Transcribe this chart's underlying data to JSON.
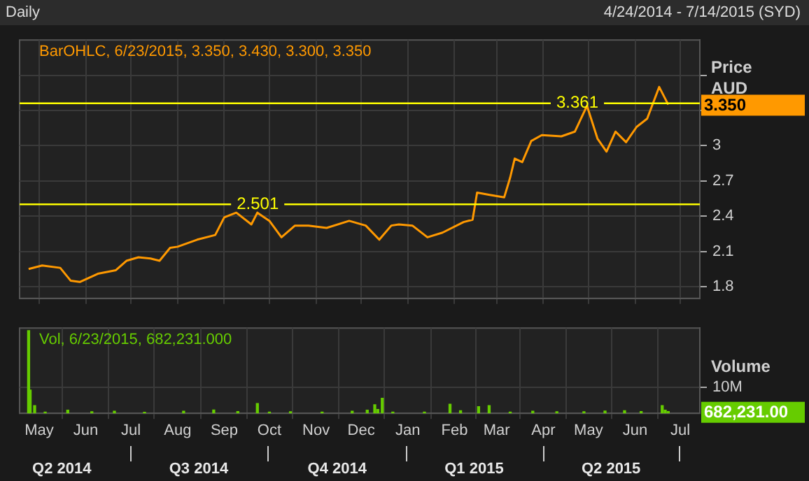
{
  "chart_data": [
    {
      "type": "line",
      "title": "Daily",
      "subtitle": "4/24/2014 - 7/14/2015 (SYD)",
      "ylabel": "Price AUD",
      "annotations": [
        "BarOHLC, 6/23/2015, 3.350, 3.430, 3.300, 3.350",
        "3.350"
      ],
      "series": [
        {
          "color": "#ff9900",
          "x": [
            "2014-04-24",
            "2014-05-03",
            "2014-05-15",
            "2014-05-22",
            "2014-05-28",
            "2014-06-09",
            "2014-06-21",
            "2014-06-28",
            "2014-07-06",
            "2014-07-14",
            "2014-07-20",
            "2014-07-27",
            "2014-08-01",
            "2014-08-14",
            "2014-08-26",
            "2014-09-01",
            "2014-09-09",
            "2014-09-19",
            "2014-09-23",
            "2014-10-01",
            "2014-10-09",
            "2014-10-18",
            "2014-10-27",
            "2014-11-08",
            "2014-11-23",
            "2014-12-04",
            "2014-12-13",
            "2014-12-21",
            "2014-12-26",
            "2015-01-04",
            "2015-01-14",
            "2015-01-24",
            "2015-02-07",
            "2015-02-13",
            "2015-02-16",
            "2015-02-25",
            "2015-03-06",
            "2015-03-10",
            "2015-03-13",
            "2015-03-18",
            "2015-03-24",
            "2015-03-31",
            "2015-04-13",
            "2015-04-22",
            "2015-04-30",
            "2015-05-07",
            "2015-05-13",
            "2015-05-19",
            "2015-05-26",
            "2015-06-02",
            "2015-06-09",
            "2015-06-17",
            "2015-06-23"
          ],
          "values": [
            1.95,
            1.98,
            1.96,
            1.85,
            1.84,
            1.91,
            1.94,
            2.02,
            2.05,
            2.04,
            2.02,
            2.13,
            2.14,
            2.2,
            2.24,
            2.39,
            2.43,
            2.33,
            2.43,
            2.36,
            2.22,
            2.32,
            2.32,
            2.3,
            2.36,
            2.32,
            2.2,
            2.32,
            2.33,
            2.32,
            2.22,
            2.26,
            2.35,
            2.37,
            2.6,
            2.58,
            2.56,
            2.73,
            2.89,
            2.86,
            3.04,
            3.09,
            3.08,
            3.12,
            3.34,
            3.06,
            2.95,
            3.12,
            3.03,
            3.16,
            3.23,
            3.5,
            3.35
          ]
        }
      ],
      "xlim": [
        "2014-04-18",
        "2015-07-14"
      ],
      "xticks": [
        {
          "value": "2014-05-01",
          "label": null
        },
        {
          "value": "2014-06-01",
          "label": null
        },
        {
          "value": "2014-07-01",
          "label": null
        },
        {
          "value": "2014-08-01",
          "label": null
        },
        {
          "value": "2014-09-01",
          "label": null
        },
        {
          "value": "2014-10-01",
          "label": null
        },
        {
          "value": "2014-11-01",
          "label": null
        },
        {
          "value": "2014-12-01",
          "label": null
        },
        {
          "value": "2015-01-01",
          "label": null
        },
        {
          "value": "2015-02-01",
          "label": null
        },
        {
          "value": "2015-03-01",
          "label": null
        },
        {
          "value": "2015-04-01",
          "label": null
        },
        {
          "value": "2015-05-01",
          "label": null
        },
        {
          "value": "2015-06-01",
          "label": null
        },
        {
          "value": "2015-07-01",
          "label": null
        }
      ],
      "ylim": [
        1.7,
        3.9
      ],
      "yticks": [
        1.8,
        2.1,
        2.4,
        2.7,
        3,
        {
          "value": 3.3,
          "label": null
        },
        {
          "value": 3.6,
          "label": null
        }
      ],
      "ref_lines": [
        {
          "axis": "y",
          "value": 2.501,
          "label": "2.501",
          "color": "#ffff00"
        },
        {
          "axis": "y",
          "value": 3.361,
          "label": "3.361",
          "color": "#ffff00"
        }
      ],
      "grid": true,
      "tick_labels": "y",
      "marker": "none",
      "line_style": "solid"
    },
    {
      "type": "bar",
      "ylabel": "Volume",
      "annotations": [
        "Vol, 6/23/2015, 682,231.000",
        "682,231.00"
      ],
      "series": [
        {
          "color": "#66cc00",
          "x": [
            "2014-04-24",
            "2014-04-25",
            "2014-04-28",
            "2014-05-05",
            "2014-05-20",
            "2014-06-05",
            "2014-06-20",
            "2014-07-10",
            "2014-08-05",
            "2014-08-25",
            "2014-09-10",
            "2014-09-23",
            "2014-10-01",
            "2014-10-15",
            "2014-11-05",
            "2014-11-25",
            "2014-12-05",
            "2014-12-10",
            "2014-12-12",
            "2014-12-15",
            "2014-12-22",
            "2015-01-12",
            "2015-01-29",
            "2015-02-05",
            "2015-02-17",
            "2015-02-24",
            "2015-03-10",
            "2015-03-25",
            "2015-04-10",
            "2015-04-28",
            "2015-05-12",
            "2015-05-25",
            "2015-06-05",
            "2015-06-19",
            "2015-06-21",
            "2015-06-23"
          ],
          "values": [
            32000000,
            9000000,
            3000000,
            500000,
            1200000,
            600000,
            800000,
            400000,
            800000,
            1300000,
            700000,
            3800000,
            500000,
            600000,
            500000,
            800000,
            1200000,
            3300000,
            1500000,
            5800000,
            500000,
            500000,
            3500000,
            1000000,
            2600000,
            3000000,
            500000,
            800000,
            600000,
            600000,
            900000,
            1000000,
            700000,
            3000000,
            1200000,
            682231
          ]
        }
      ],
      "xlim": [
        "2014-04-18",
        "2015-07-14"
      ],
      "xticks": [
        {
          "value": "2014-05-01",
          "label": "May"
        },
        {
          "value": "2014-06-01",
          "label": "Jun"
        },
        {
          "value": "2014-07-01",
          "label": "Jul"
        },
        {
          "value": "2014-08-01",
          "label": "Aug"
        },
        {
          "value": "2014-09-01",
          "label": "Sep"
        },
        {
          "value": "2014-10-01",
          "label": "Oct"
        },
        {
          "value": "2014-11-01",
          "label": "Nov"
        },
        {
          "value": "2014-12-01",
          "label": "Dec"
        },
        {
          "value": "2015-01-01",
          "label": "Jan"
        },
        {
          "value": "2015-02-01",
          "label": "Feb"
        },
        {
          "value": "2015-03-01",
          "label": "Mar"
        },
        {
          "value": "2015-04-01",
          "label": "Apr"
        },
        {
          "value": "2015-05-01",
          "label": "May"
        },
        {
          "value": "2015-06-01",
          "label": "Jun"
        },
        {
          "value": "2015-07-01",
          "label": "Jul"
        }
      ],
      "x2lim": [
        "2014-04-18",
        "2015-07-14"
      ],
      "x2ticks": [
        {
          "value": "2014-05-16",
          "label": "Q2 2014"
        },
        {
          "value": "2014-08-15",
          "label": "Q3 2014"
        },
        {
          "value": "2014-11-15",
          "label": "Q4 2014"
        },
        {
          "value": "2015-02-14",
          "label": "Q1 2015"
        },
        {
          "value": "2015-05-16",
          "label": "Q2 2015"
        }
      ],
      "ylim": [
        0,
        33000000
      ],
      "yticks": [
        {
          "value": 10000000,
          "label": "10M"
        }
      ],
      "grid": true
    }
  ]
}
